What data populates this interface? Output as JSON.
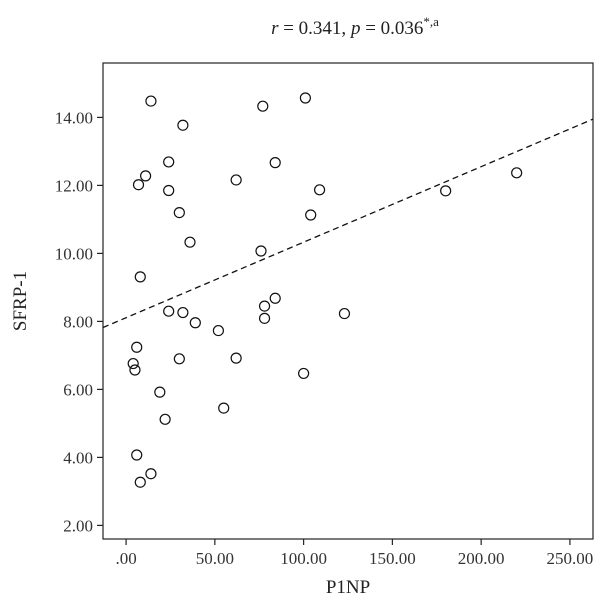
{
  "chart_data": {
    "type": "scatter",
    "title_parts": {
      "r_symbol": "r",
      "r_value": " = 0.341, ",
      "p_symbol": "p",
      "p_value": " = 0.036",
      "superscript": "*,a"
    },
    "xlabel": "P1NP",
    "ylabel": "SFRP-1",
    "xlim": [
      -13,
      263
    ],
    "ylim": [
      1.6,
      15.6
    ],
    "xticks": [
      0,
      50,
      100,
      150,
      200,
      250
    ],
    "xtick_labels": [
      ".00",
      "50.00",
      "100.00",
      "150.00",
      "200.00",
      "250.00"
    ],
    "yticks": [
      2,
      4,
      6,
      8,
      10,
      12,
      14
    ],
    "ytick_labels": [
      "2.00",
      "4.00",
      "6.00",
      "8.00",
      "10.00",
      "12.00",
      "14.00"
    ],
    "grid": false,
    "trendline": {
      "style": "dashed",
      "x0": -13,
      "y0": 7.82,
      "x1": 263,
      "y1": 13.95
    },
    "points": [
      {
        "x": 14,
        "y": 14.48
      },
      {
        "x": 77,
        "y": 14.33
      },
      {
        "x": 101,
        "y": 14.57
      },
      {
        "x": 32,
        "y": 13.77
      },
      {
        "x": 24,
        "y": 12.69
      },
      {
        "x": 84,
        "y": 12.67
      },
      {
        "x": 11,
        "y": 12.28
      },
      {
        "x": 7,
        "y": 12.02
      },
      {
        "x": 62,
        "y": 12.16
      },
      {
        "x": 24,
        "y": 11.85
      },
      {
        "x": 109,
        "y": 11.87
      },
      {
        "x": 180,
        "y": 11.84
      },
      {
        "x": 220,
        "y": 12.37
      },
      {
        "x": 30,
        "y": 11.2
      },
      {
        "x": 104,
        "y": 11.13
      },
      {
        "x": 36,
        "y": 10.33
      },
      {
        "x": 76,
        "y": 10.07
      },
      {
        "x": 8,
        "y": 9.31
      },
      {
        "x": 84,
        "y": 8.68
      },
      {
        "x": 78,
        "y": 8.45
      },
      {
        "x": 24,
        "y": 8.3
      },
      {
        "x": 32,
        "y": 8.26
      },
      {
        "x": 78,
        "y": 8.09
      },
      {
        "x": 123,
        "y": 8.23
      },
      {
        "x": 39,
        "y": 7.96
      },
      {
        "x": 52,
        "y": 7.73
      },
      {
        "x": 6,
        "y": 7.24
      },
      {
        "x": 30,
        "y": 6.9
      },
      {
        "x": 62,
        "y": 6.92
      },
      {
        "x": 4,
        "y": 6.76
      },
      {
        "x": 5,
        "y": 6.57
      },
      {
        "x": 100,
        "y": 6.47
      },
      {
        "x": 19,
        "y": 5.92
      },
      {
        "x": 55,
        "y": 5.45
      },
      {
        "x": 22,
        "y": 5.12
      },
      {
        "x": 6,
        "y": 4.07
      },
      {
        "x": 14,
        "y": 3.52
      },
      {
        "x": 8,
        "y": 3.27
      }
    ]
  }
}
